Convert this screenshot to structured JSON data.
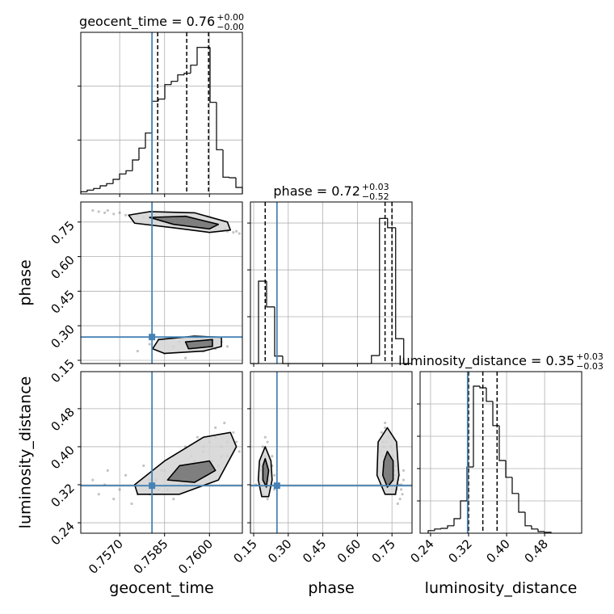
{
  "chart_data": {
    "type": "corner",
    "grid": true,
    "truth_color": "#4682b4",
    "parameters": [
      {
        "name": "geocent_time",
        "title": "geocent_time = 0.76",
        "title_plus": "+0.00",
        "title_minus": "−0.00",
        "lim": [
          0.7557,
          0.7611
        ],
        "ticks": [
          {
            "value": 0.757,
            "label": "0.7570"
          },
          {
            "value": 0.7585,
            "label": "0.7585"
          },
          {
            "value": 0.76,
            "label": "0.7600"
          }
        ],
        "quantiles": [
          0.75827,
          0.75924,
          0.75997
        ],
        "truth": 0.75808,
        "bins": [
          0.7557,
          0.755916,
          0.756132,
          0.756348,
          0.756564,
          0.75678,
          0.756996,
          0.757212,
          0.757428,
          0.757644,
          0.75786,
          0.758076,
          0.758292,
          0.758508,
          0.758724,
          0.75894,
          0.759156,
          0.759372,
          0.759588,
          0.759804,
          0.76002,
          0.760236,
          0.760452,
          0.760668,
          0.760884,
          0.7611
        ],
        "counts": [
          0.04,
          0.07,
          0.1,
          0.15,
          0.19,
          0.27,
          0.37,
          0.43,
          0.63,
          0.85,
          1.13,
          1.72,
          1.76,
          2.03,
          2.09,
          2.21,
          2.24,
          2.39,
          2.72,
          2.72,
          1.7,
          0.82,
          0.31,
          0.3,
          0.12
        ],
        "hist_ylim": [
          0,
          3
        ],
        "hist_grid": [
          1,
          2
        ]
      },
      {
        "name": "phase",
        "title": "phase = 0.72",
        "title_plus": "+0.03",
        "title_minus": "−0.52",
        "lim": [
          0.136,
          0.837
        ],
        "ticks": [
          0.15,
          {
            "value": 0.3,
            "label": "0.30"
          },
          0.45,
          {
            "value": 0.6,
            "label": "0.60"
          },
          0.75
        ],
        "quantiles": [
          0.2,
          0.72,
          0.75
        ],
        "truth": 0.251,
        "bins": [
          0.136,
          0.171,
          0.206,
          0.241,
          0.276,
          0.311,
          0.346,
          0.381,
          0.416,
          0.451,
          0.486,
          0.521,
          0.556,
          0.591,
          0.626,
          0.661,
          0.696,
          0.731,
          0.766,
          0.801,
          0.836
        ],
        "counts": [
          0,
          1.76,
          1.21,
          0.16,
          0,
          0,
          0,
          0,
          0,
          0,
          0,
          0,
          0,
          0,
          0,
          0.17,
          3.1,
          2.9,
          0.53,
          0
        ],
        "hist_ylim": [
          0,
          3.45
        ],
        "hist_grid": [
          1,
          2,
          3
        ]
      },
      {
        "name": "luminosity_distance",
        "title": "luminosity_distance = 0.35",
        "title_plus": "+0.03",
        "title_minus": "−0.03",
        "lim": [
          0.218,
          0.558
        ],
        "ticks": [
          0.24,
          0.32,
          {
            "value": 0.4,
            "label": "0.40"
          },
          0.48
        ],
        "quantiles": [
          0.32,
          0.35,
          0.38
        ],
        "truth": 0.318,
        "bins": [
          0.235,
          0.2486,
          0.2622,
          0.2758,
          0.2894,
          0.303,
          0.3166,
          0.3302,
          0.3438,
          0.3574,
          0.371,
          0.3846,
          0.3982,
          0.4118,
          0.4254,
          0.439,
          0.4526,
          0.4662,
          0.4798,
          0.4934
        ],
        "counts": [
          0.08,
          0.13,
          0.15,
          0.23,
          0.45,
          1.0,
          2.05,
          4.55,
          4.5,
          4.08,
          3.33,
          2.25,
          1.73,
          1.23,
          0.65,
          0.23,
          0.13,
          0.05,
          0.03
        ],
        "hist_ylim": [
          0,
          5
        ],
        "hist_grid": [
          1,
          2,
          3,
          4
        ]
      }
    ],
    "samples": [
      [
        0.7561,
        0.8,
        0.33
      ],
      [
        0.7563,
        0.795,
        0.3
      ],
      [
        0.7565,
        0.79,
        0.32
      ],
      [
        0.7566,
        0.8,
        0.35
      ],
      [
        0.7568,
        0.785,
        0.29
      ],
      [
        0.757,
        0.79,
        0.31
      ],
      [
        0.7572,
        0.78,
        0.34
      ],
      [
        0.7574,
        0.775,
        0.28
      ],
      [
        0.7576,
        0.78,
        0.32
      ],
      [
        0.7578,
        0.77,
        0.36
      ],
      [
        0.758,
        0.765,
        0.3
      ],
      [
        0.7582,
        0.775,
        0.33
      ],
      [
        0.7584,
        0.76,
        0.35
      ],
      [
        0.7586,
        0.77,
        0.31
      ],
      [
        0.7588,
        0.755,
        0.38
      ],
      [
        0.7589,
        0.765,
        0.34
      ],
      [
        0.759,
        0.75,
        0.32
      ],
      [
        0.7591,
        0.76,
        0.36
      ],
      [
        0.7592,
        0.745,
        0.4
      ],
      [
        0.7593,
        0.755,
        0.35
      ],
      [
        0.7594,
        0.74,
        0.33
      ],
      [
        0.7595,
        0.75,
        0.37
      ],
      [
        0.7596,
        0.735,
        0.42
      ],
      [
        0.7597,
        0.745,
        0.35
      ],
      [
        0.7598,
        0.73,
        0.39
      ],
      [
        0.7599,
        0.74,
        0.34
      ],
      [
        0.76,
        0.725,
        0.41
      ],
      [
        0.7601,
        0.735,
        0.37
      ],
      [
        0.7602,
        0.72,
        0.44
      ],
      [
        0.7603,
        0.73,
        0.36
      ],
      [
        0.7604,
        0.715,
        0.4
      ],
      [
        0.7605,
        0.72,
        0.45
      ],
      [
        0.7606,
        0.71,
        0.38
      ],
      [
        0.7608,
        0.705,
        0.43
      ],
      [
        0.7609,
        0.71,
        0.41
      ],
      [
        0.761,
        0.7,
        0.39
      ],
      [
        0.7576,
        0.19,
        0.3
      ],
      [
        0.758,
        0.22,
        0.33
      ],
      [
        0.7583,
        0.24,
        0.31
      ],
      [
        0.7585,
        0.18,
        0.35
      ],
      [
        0.7588,
        0.21,
        0.29
      ],
      [
        0.759,
        0.23,
        0.36
      ],
      [
        0.7592,
        0.16,
        0.32
      ],
      [
        0.7594,
        0.2,
        0.38
      ],
      [
        0.7596,
        0.24,
        0.34
      ],
      [
        0.7598,
        0.19,
        0.4
      ],
      [
        0.76,
        0.22,
        0.36
      ],
      [
        0.7602,
        0.2,
        0.42
      ],
      [
        0.7604,
        0.23,
        0.38
      ],
      [
        0.7606,
        0.21,
        0.41
      ]
    ],
    "contours": [
      [
        {
          "fill": "#d4d4d4",
          "x": [
            0.7573,
            0.758,
            0.7595,
            0.7606,
            0.7607,
            0.76,
            0.7588,
            0.7575
          ],
          "y": [
            0.78,
            0.795,
            0.79,
            0.75,
            0.715,
            0.705,
            0.725,
            0.745
          ]
        },
        {
          "fill": "#6e6e6e",
          "x": [
            0.758,
            0.7592,
            0.7603,
            0.76,
            0.7588
          ],
          "y": [
            0.77,
            0.775,
            0.74,
            0.72,
            0.74
          ]
        },
        {
          "fill": "#d4d4d4",
          "x": [
            0.7583,
            0.7595,
            0.7604,
            0.7604,
            0.7598,
            0.7585,
            0.7581
          ],
          "y": [
            0.24,
            0.255,
            0.25,
            0.21,
            0.19,
            0.18,
            0.2
          ]
        },
        {
          "fill": "#6e6e6e",
          "x": [
            0.7592,
            0.7601,
            0.7601,
            0.7593
          ],
          "y": [
            0.23,
            0.24,
            0.21,
            0.2
          ]
        }
      ],
      [
        {
          "fill": "#d4d4d4",
          "x": [
            0.7575,
            0.7576,
            0.759,
            0.7603,
            0.7609,
            0.7607,
            0.7598,
            0.7585
          ],
          "y": [
            0.32,
            0.3,
            0.3,
            0.33,
            0.4,
            0.43,
            0.42,
            0.37
          ]
        },
        {
          "fill": "#6e6e6e",
          "x": [
            0.7586,
            0.7595,
            0.7602,
            0.76,
            0.759
          ],
          "y": [
            0.33,
            0.325,
            0.35,
            0.37,
            0.36
          ]
        }
      ],
      [
        {
          "fill": "#d4d4d4",
          "x": [
            0.2,
            0.225,
            0.23,
            0.215,
            0.185,
            0.17,
            0.175
          ],
          "y": [
            0.4,
            0.37,
            0.33,
            0.295,
            0.295,
            0.33,
            0.37
          ]
        },
        {
          "fill": "#6e6e6e",
          "x": [
            0.2,
            0.215,
            0.205,
            0.19,
            0.19
          ],
          "y": [
            0.375,
            0.35,
            0.315,
            0.33,
            0.36
          ]
        },
        {
          "fill": "#d4d4d4",
          "x": [
            0.73,
            0.77,
            0.78,
            0.765,
            0.72,
            0.685,
            0.69
          ],
          "y": [
            0.44,
            0.41,
            0.34,
            0.3,
            0.3,
            0.34,
            0.41
          ]
        },
        {
          "fill": "#6e6e6e",
          "x": [
            0.73,
            0.755,
            0.755,
            0.73,
            0.71,
            0.715
          ],
          "y": [
            0.39,
            0.37,
            0.33,
            0.315,
            0.34,
            0.37
          ]
        }
      ]
    ]
  }
}
